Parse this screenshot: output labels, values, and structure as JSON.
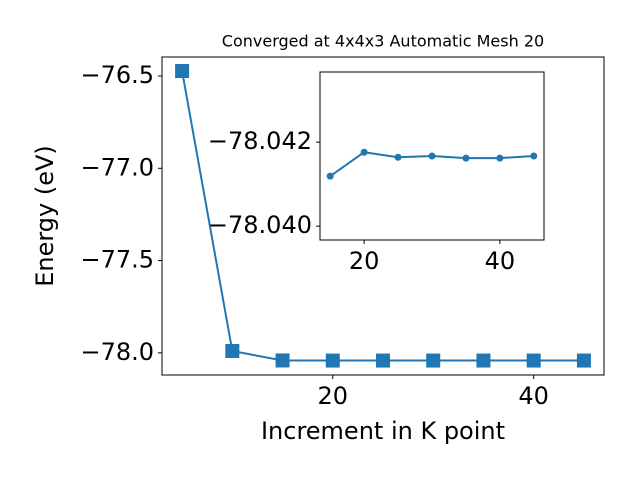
{
  "chart_data": [
    {
      "type": "line",
      "title": "Converged at 4x4x3 Automatic Mesh 20",
      "x_label": "Increment in K point",
      "y_label": "Energy (eV)",
      "x": [
        5,
        10,
        15,
        20,
        25,
        30,
        35,
        40,
        45
      ],
      "series": [
        {
          "color": "#1f77b4",
          "marker": "square",
          "values": [
            -76.473,
            -77.99,
            -78.04119,
            -78.04176,
            -78.04164,
            -78.04167,
            -78.04162,
            -78.04162,
            -78.04167
          ]
        }
      ],
      "xlim": [
        3,
        47
      ],
      "xticks": [
        20,
        40
      ],
      "ylim": [
        -78.12,
        -76.397
      ],
      "yticks": [
        {
          "value": -78.0,
          "label": "−78.0"
        },
        {
          "value": -77.5,
          "label": "−77.5"
        },
        {
          "value": -77.0,
          "label": "−77.0"
        },
        {
          "value": -76.5,
          "label": "−76.5"
        }
      ]
    },
    {
      "type": "line",
      "x": [
        15,
        20,
        25,
        30,
        35,
        40,
        45
      ],
      "series": [
        {
          "color": "#1f77b4",
          "marker": "circle",
          "values": [
            -78.04119,
            -78.04176,
            -78.04164,
            -78.04167,
            -78.04162,
            -78.04162,
            -78.04167
          ]
        }
      ],
      "xlim": [
        13.5,
        46.5
      ],
      "xticks": [
        20,
        40
      ],
      "ylim": [
        -78.03967,
        -78.04367
      ],
      "yticks": [
        {
          "value": -78.04,
          "label": "−78.040"
        },
        {
          "value": -78.042,
          "label": "−78.042"
        }
      ]
    }
  ]
}
